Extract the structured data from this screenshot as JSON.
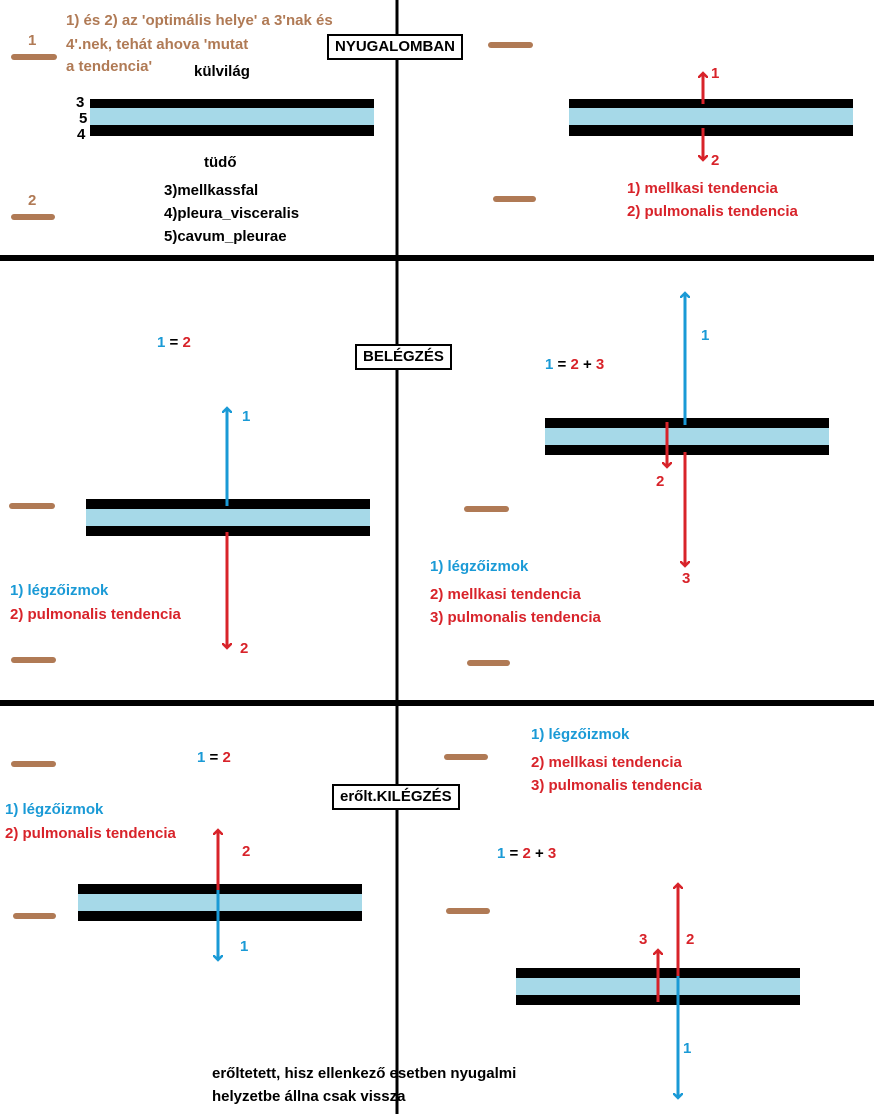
{
  "colors": {
    "brown": "#b07a55",
    "blue": "#1a9ad6",
    "red": "#d8232a",
    "membrane_fill": "#a6d9e8",
    "black": "#000000"
  },
  "sections": {
    "rest": "NYUGALOMBAN",
    "inspiration": "BELÉGZÉS",
    "forced_expiration": "erőlt.KILÉGZÉS"
  },
  "rest": {
    "note_line1": "1) és 2) az 'optimális helye' a 3'nak és",
    "note_line2": "4'.nek, tehát ahova 'mutat",
    "note_line3": "a tendencia'",
    "marker_1": "1",
    "marker_2": "2",
    "outside": "külvilág",
    "layer_3": "3",
    "layer_5": "5",
    "layer_4": "4",
    "lung": "tüdő",
    "legend_3": "3)mellkassfal",
    "legend_4": "4)pleura_visceralis",
    "legend_5": "5)cavum_pleurae",
    "arrow_1": "1",
    "arrow_2": "2",
    "legend_1": "1) mellkasi tendencia",
    "legend_2": "2) pulmonalis tendencia"
  },
  "inspiration_left": {
    "eq_1": "1",
    "eq_op": "=",
    "eq_2": "2",
    "arrow_1": "1",
    "arrow_2": "2",
    "legend_1": "1) légzőizmok",
    "legend_2": "2) pulmonalis tendencia"
  },
  "inspiration_right": {
    "eq_1": "1",
    "eq_op1": "=",
    "eq_2": "2",
    "eq_op2": "+",
    "eq_3": "3",
    "arrow_1": "1",
    "arrow_2": "2",
    "arrow_3": "3",
    "legend_1": "1) légzőizmok",
    "legend_2": "2)  mellkasi tendencia",
    "legend_3": "3)  pulmonalis tendencia"
  },
  "expiration_left": {
    "eq_1": "1",
    "eq_op": "=",
    "eq_2": "2",
    "legend_1": "1) légzőizmok",
    "legend_2": "2) pulmonalis tendencia",
    "arrow_2": "2",
    "arrow_1": "1"
  },
  "expiration_right": {
    "legend_1": "1) légzőizmok",
    "legend_2": "2)  mellkasi tendencia",
    "legend_3": "3)  pulmonalis tendencia",
    "eq_1": "1",
    "eq_op1": "=",
    "eq_2": "2",
    "eq_op2": "+",
    "eq_3": "3",
    "arrow_3": "3",
    "arrow_2": "2",
    "arrow_1": "1"
  },
  "footnote_line1": "erőltetett, hisz ellenkező esetben nyugalmi",
  "footnote_line2": "helyzetbe állna csak vissza"
}
